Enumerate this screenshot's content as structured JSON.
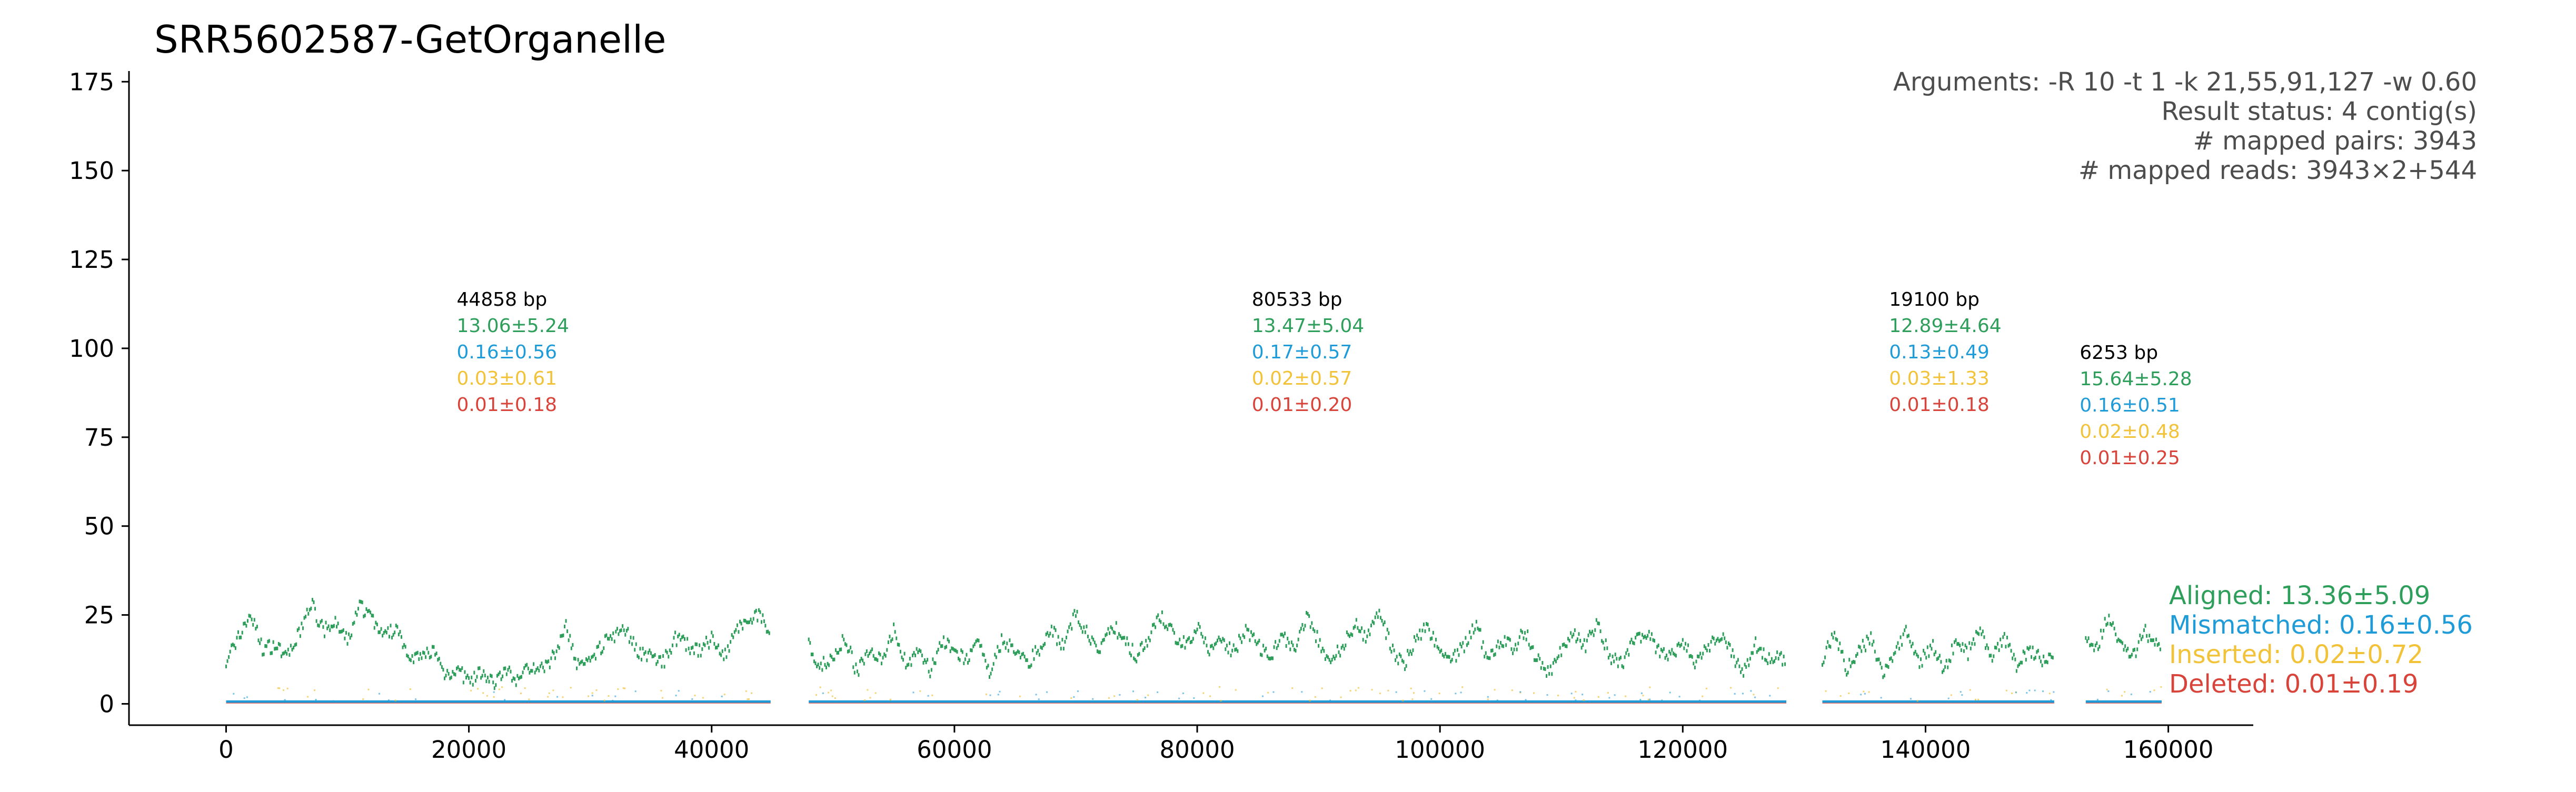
{
  "chart_data": {
    "type": "scatter",
    "title": "SRR5602587-GetOrganelle",
    "xlabel": "",
    "ylabel": "",
    "xlim": [
      -8000,
      167000
    ],
    "ylim": [
      -6,
      178
    ],
    "x_ticks": [
      0,
      20000,
      40000,
      60000,
      80000,
      100000,
      120000,
      140000,
      160000
    ],
    "y_ticks": [
      0,
      25,
      50,
      75,
      100,
      125,
      150,
      175
    ],
    "grid": false,
    "info_box": {
      "placement": "top-right",
      "lines": [
        "Arguments: -R 10 -t 1 -k 21,55,91,127 -w 0.60",
        "Result status: 4 contig(s)",
        "# mapped pairs: 3943",
        "# mapped reads: 3943×2+544"
      ]
    },
    "contigs": [
      {
        "length_label": "44858 bp",
        "start": 0,
        "end": 44858,
        "aligned": "13.06±5.24",
        "mismatched": "0.16±0.56",
        "inserted": "0.03±0.61",
        "deleted": "0.01±0.18",
        "label_y": 112
      },
      {
        "length_label": "80533 bp",
        "start": 48000,
        "end": 128533,
        "aligned": "13.47±5.04",
        "mismatched": "0.17±0.57",
        "inserted": "0.02±0.57",
        "deleted": "0.01±0.20",
        "label_y": 112
      },
      {
        "length_label": "19100 bp",
        "start": 131500,
        "end": 150600,
        "aligned": "12.89±4.64",
        "mismatched": "0.13±0.49",
        "inserted": "0.03±1.33",
        "deleted": "0.01±0.18",
        "label_y": 112
      },
      {
        "length_label": "6253 bp",
        "start": 153200,
        "end": 159453,
        "aligned": "15.64±5.28",
        "mismatched": "0.16±0.51",
        "inserted": "0.02±0.48",
        "deleted": "0.01±0.25",
        "label_y": 97
      }
    ],
    "series": [
      {
        "name": "Aligned",
        "summary": "Aligned: 13.36±5.09",
        "color": "#2e9e5b"
      },
      {
        "name": "Mismatched",
        "summary": "Mismatched: 0.16±0.56",
        "color": "#1f9bd8"
      },
      {
        "name": "Inserted",
        "summary": "Inserted: 0.02±0.72",
        "color": "#f2c239"
      },
      {
        "name": "Deleted",
        "summary": "Deleted: 0.01±0.19",
        "color": "#d8433a"
      }
    ],
    "legend_placement": "bottom-right",
    "aligned_profile": [
      [
        0,
        12
      ],
      [
        1000,
        18
      ],
      [
        2000,
        25
      ],
      [
        3000,
        15
      ],
      [
        4000,
        16
      ],
      [
        5000,
        12
      ],
      [
        6000,
        19
      ],
      [
        7000,
        28
      ],
      [
        8000,
        20
      ],
      [
        9000,
        22
      ],
      [
        10000,
        17
      ],
      [
        11000,
        27
      ],
      [
        12000,
        24
      ],
      [
        13000,
        18
      ],
      [
        14000,
        21
      ],
      [
        15000,
        14
      ],
      [
        16000,
        12
      ],
      [
        17000,
        15
      ],
      [
        18000,
        8
      ],
      [
        19000,
        9
      ],
      [
        20000,
        6
      ],
      [
        21000,
        8
      ],
      [
        22000,
        5
      ],
      [
        23000,
        9
      ],
      [
        24000,
        6
      ],
      [
        25000,
        10
      ],
      [
        26000,
        9
      ],
      [
        27000,
        13
      ],
      [
        28000,
        22
      ],
      [
        29000,
        10
      ],
      [
        30000,
        12
      ],
      [
        31000,
        16
      ],
      [
        32000,
        19
      ],
      [
        33000,
        20
      ],
      [
        34000,
        14
      ],
      [
        35000,
        13
      ],
      [
        36000,
        11
      ],
      [
        37000,
        18
      ],
      [
        38000,
        16
      ],
      [
        39000,
        14
      ],
      [
        40000,
        18
      ],
      [
        41000,
        12
      ],
      [
        42000,
        20
      ],
      [
        43000,
        22
      ],
      [
        44000,
        25
      ],
      [
        44858,
        18
      ],
      [
        48000,
        16
      ],
      [
        49000,
        10
      ],
      [
        50000,
        12
      ],
      [
        51000,
        18
      ],
      [
        52000,
        8
      ],
      [
        53000,
        15
      ],
      [
        54000,
        12
      ],
      [
        55000,
        20
      ],
      [
        56000,
        11
      ],
      [
        57000,
        14
      ],
      [
        58000,
        9
      ],
      [
        59000,
        17
      ],
      [
        60000,
        14
      ],
      [
        61000,
        12
      ],
      [
        62000,
        16
      ],
      [
        63000,
        8
      ],
      [
        64000,
        18
      ],
      [
        65000,
        14
      ],
      [
        66000,
        11
      ],
      [
        67000,
        15
      ],
      [
        68000,
        20
      ],
      [
        69000,
        16
      ],
      [
        70000,
        25
      ],
      [
        71000,
        19
      ],
      [
        72000,
        14
      ],
      [
        73000,
        22
      ],
      [
        74000,
        17
      ],
      [
        75000,
        13
      ],
      [
        76000,
        18
      ],
      [
        77000,
        24
      ],
      [
        78000,
        19
      ],
      [
        79000,
        16
      ],
      [
        80000,
        21
      ],
      [
        81000,
        15
      ],
      [
        82000,
        18
      ],
      [
        83000,
        14
      ],
      [
        84000,
        20
      ],
      [
        85000,
        16
      ],
      [
        86000,
        12
      ],
      [
        87000,
        19
      ],
      [
        88000,
        14
      ],
      [
        89000,
        24
      ],
      [
        90000,
        17
      ],
      [
        91000,
        11
      ],
      [
        92000,
        16
      ],
      [
        93000,
        22
      ],
      [
        94000,
        18
      ],
      [
        95000,
        26
      ],
      [
        96000,
        15
      ],
      [
        97000,
        10
      ],
      [
        98000,
        18
      ],
      [
        99000,
        21
      ],
      [
        100000,
        14
      ],
      [
        101000,
        12
      ],
      [
        102000,
        16
      ],
      [
        103000,
        22
      ],
      [
        104000,
        11
      ],
      [
        105000,
        18
      ],
      [
        106000,
        15
      ],
      [
        107000,
        20
      ],
      [
        108000,
        12
      ],
      [
        109000,
        8
      ],
      [
        110000,
        14
      ],
      [
        111000,
        19
      ],
      [
        112000,
        16
      ],
      [
        113000,
        22
      ],
      [
        114000,
        13
      ],
      [
        115000,
        11
      ],
      [
        116000,
        17
      ],
      [
        117000,
        20
      ],
      [
        118000,
        14
      ],
      [
        119000,
        12
      ],
      [
        120000,
        18
      ],
      [
        121000,
        10
      ],
      [
        122000,
        15
      ],
      [
        123000,
        19
      ],
      [
        124000,
        14
      ],
      [
        125000,
        8
      ],
      [
        126000,
        16
      ],
      [
        127000,
        12
      ],
      [
        128000,
        14
      ],
      [
        128533,
        10
      ],
      [
        131500,
        12
      ],
      [
        132500,
        20
      ],
      [
        133500,
        9
      ],
      [
        134500,
        14
      ],
      [
        135500,
        18
      ],
      [
        136500,
        8
      ],
      [
        137500,
        15
      ],
      [
        138500,
        20
      ],
      [
        139500,
        11
      ],
      [
        140500,
        16
      ],
      [
        141500,
        9
      ],
      [
        142500,
        17
      ],
      [
        143500,
        14
      ],
      [
        144500,
        20
      ],
      [
        145500,
        12
      ],
      [
        146500,
        18
      ],
      [
        147500,
        10
      ],
      [
        148500,
        15
      ],
      [
        149500,
        12
      ],
      [
        150600,
        14
      ],
      [
        153200,
        18
      ],
      [
        154000,
        14
      ],
      [
        155000,
        24
      ],
      [
        156000,
        16
      ],
      [
        157000,
        12
      ],
      [
        158000,
        20
      ],
      [
        159000,
        16
      ],
      [
        159453,
        14
      ]
    ]
  }
}
